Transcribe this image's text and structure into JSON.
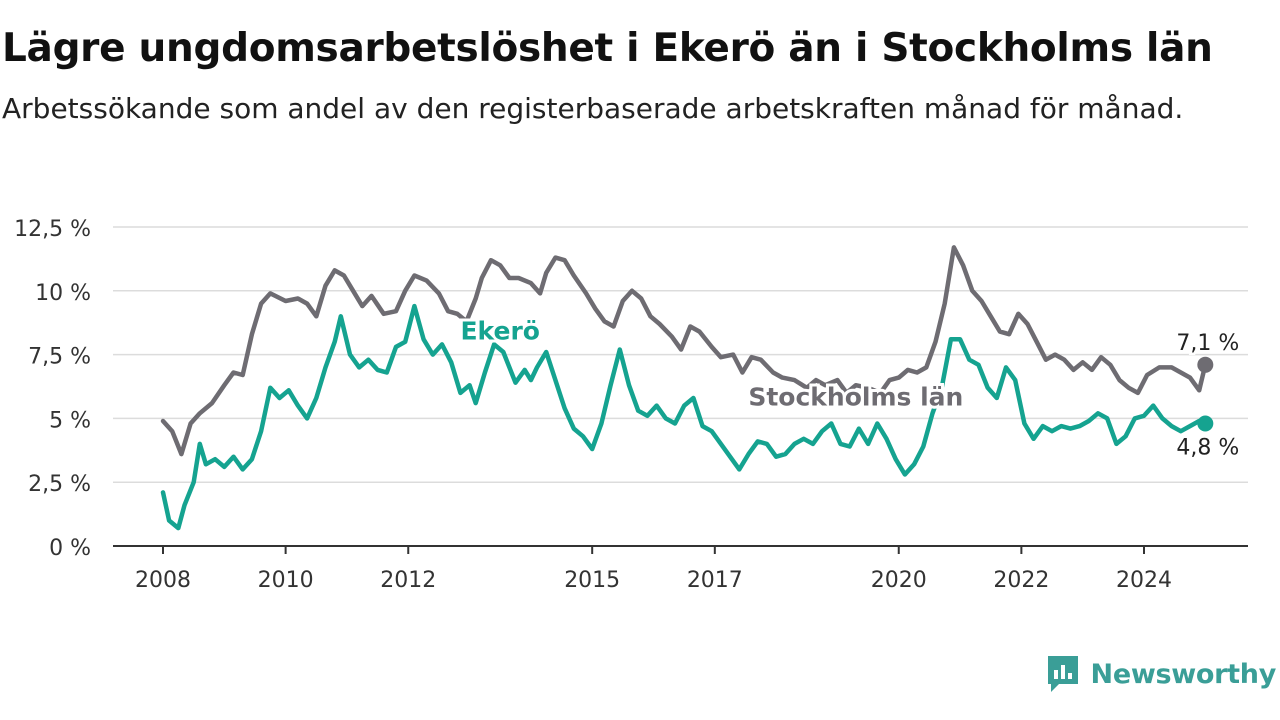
{
  "title": "Lägre ungdomsarbetslöshet i Ekerö än i Stockholms län",
  "subtitle": "Arbetssökande som andel av den registerbaserade arbetskraften månad för månad.",
  "brand": {
    "name": "Newsworthy",
    "color": "#3a9e97",
    "icon": "newsworthy-logo-icon"
  },
  "chart_data": {
    "type": "line",
    "ylim": [
      0,
      12.5
    ],
    "xlim": [
      2008,
      2025.3
    ],
    "yticks": [
      {
        "value": 0,
        "label": "0 %"
      },
      {
        "value": 2.5,
        "label": "2,5 %"
      },
      {
        "value": 5,
        "label": "5 %"
      },
      {
        "value": 7.5,
        "label": "7,5 %"
      },
      {
        "value": 10,
        "label": "10 %"
      },
      {
        "value": 12.5,
        "label": "12,5 %"
      }
    ],
    "xticks": [
      {
        "value": 2008,
        "label": "2008"
      },
      {
        "value": 2010,
        "label": "2010"
      },
      {
        "value": 2012,
        "label": "2012"
      },
      {
        "value": 2015,
        "label": "2015"
      },
      {
        "value": 2017,
        "label": "2017"
      },
      {
        "value": 2020,
        "label": "2020"
      },
      {
        "value": 2022,
        "label": "2022"
      },
      {
        "value": 2024,
        "label": "2024"
      }
    ],
    "grid": true,
    "legend": "none",
    "series": [
      {
        "name": "Stockholms län",
        "color": "#6e6c72",
        "end_label": "7,1 %",
        "points": [
          [
            2008.0,
            4.9
          ],
          [
            2008.15,
            4.5
          ],
          [
            2008.3,
            3.6
          ],
          [
            2008.45,
            4.8
          ],
          [
            2008.6,
            5.2
          ],
          [
            2008.8,
            5.6
          ],
          [
            2009.0,
            6.3
          ],
          [
            2009.15,
            6.8
          ],
          [
            2009.3,
            6.7
          ],
          [
            2009.45,
            8.3
          ],
          [
            2009.6,
            9.5
          ],
          [
            2009.75,
            9.9
          ],
          [
            2010.0,
            9.6
          ],
          [
            2010.2,
            9.7
          ],
          [
            2010.35,
            9.5
          ],
          [
            2010.5,
            9.0
          ],
          [
            2010.65,
            10.2
          ],
          [
            2010.8,
            10.8
          ],
          [
            2010.95,
            10.6
          ],
          [
            2011.1,
            10.0
          ],
          [
            2011.25,
            9.4
          ],
          [
            2011.4,
            9.8
          ],
          [
            2011.6,
            9.1
          ],
          [
            2011.8,
            9.2
          ],
          [
            2011.95,
            10.0
          ],
          [
            2012.1,
            10.6
          ],
          [
            2012.3,
            10.4
          ],
          [
            2012.5,
            9.9
          ],
          [
            2012.65,
            9.2
          ],
          [
            2012.8,
            9.1
          ],
          [
            2012.95,
            8.8
          ],
          [
            2013.1,
            9.7
          ],
          [
            2013.2,
            10.5
          ],
          [
            2013.35,
            11.2
          ],
          [
            2013.5,
            11.0
          ],
          [
            2013.65,
            10.5
          ],
          [
            2013.8,
            10.5
          ],
          [
            2014.0,
            10.3
          ],
          [
            2014.15,
            9.9
          ],
          [
            2014.25,
            10.7
          ],
          [
            2014.4,
            11.3
          ],
          [
            2014.55,
            11.2
          ],
          [
            2014.7,
            10.6
          ],
          [
            2014.9,
            9.9
          ],
          [
            2015.05,
            9.3
          ],
          [
            2015.2,
            8.8
          ],
          [
            2015.35,
            8.6
          ],
          [
            2015.5,
            9.6
          ],
          [
            2015.65,
            10.0
          ],
          [
            2015.8,
            9.7
          ],
          [
            2015.95,
            9.0
          ],
          [
            2016.1,
            8.7
          ],
          [
            2016.3,
            8.2
          ],
          [
            2016.45,
            7.7
          ],
          [
            2016.6,
            8.6
          ],
          [
            2016.75,
            8.4
          ],
          [
            2016.95,
            7.8
          ],
          [
            2017.1,
            7.4
          ],
          [
            2017.3,
            7.5
          ],
          [
            2017.45,
            6.8
          ],
          [
            2017.6,
            7.4
          ],
          [
            2017.75,
            7.3
          ],
          [
            2017.95,
            6.8
          ],
          [
            2018.1,
            6.6
          ],
          [
            2018.3,
            6.5
          ],
          [
            2018.5,
            6.2
          ],
          [
            2018.65,
            6.5
          ],
          [
            2018.8,
            6.3
          ],
          [
            2019.0,
            6.5
          ],
          [
            2019.15,
            6.0
          ],
          [
            2019.3,
            6.3
          ],
          [
            2019.5,
            6.2
          ],
          [
            2019.7,
            6.0
          ],
          [
            2019.85,
            6.5
          ],
          [
            2020.0,
            6.6
          ],
          [
            2020.15,
            6.9
          ],
          [
            2020.3,
            6.8
          ],
          [
            2020.45,
            7.0
          ],
          [
            2020.6,
            8.0
          ],
          [
            2020.75,
            9.5
          ],
          [
            2020.9,
            11.7
          ],
          [
            2021.05,
            11.0
          ],
          [
            2021.2,
            10.0
          ],
          [
            2021.35,
            9.6
          ],
          [
            2021.5,
            9.0
          ],
          [
            2021.65,
            8.4
          ],
          [
            2021.8,
            8.3
          ],
          [
            2021.95,
            9.1
          ],
          [
            2022.1,
            8.7
          ],
          [
            2022.25,
            8.0
          ],
          [
            2022.4,
            7.3
          ],
          [
            2022.55,
            7.5
          ],
          [
            2022.7,
            7.3
          ],
          [
            2022.85,
            6.9
          ],
          [
            2023.0,
            7.2
          ],
          [
            2023.15,
            6.9
          ],
          [
            2023.3,
            7.4
          ],
          [
            2023.45,
            7.1
          ],
          [
            2023.6,
            6.5
          ],
          [
            2023.75,
            6.2
          ],
          [
            2023.9,
            6.0
          ],
          [
            2024.05,
            6.7
          ],
          [
            2024.25,
            7.0
          ],
          [
            2024.45,
            7.0
          ],
          [
            2024.6,
            6.8
          ],
          [
            2024.75,
            6.6
          ],
          [
            2024.9,
            6.1
          ],
          [
            2025.0,
            7.1
          ]
        ]
      },
      {
        "name": "Ekerö",
        "color": "#15a390",
        "end_label": "4,8 %",
        "points": [
          [
            2008.0,
            2.1
          ],
          [
            2008.1,
            1.0
          ],
          [
            2008.25,
            0.7
          ],
          [
            2008.35,
            1.6
          ],
          [
            2008.5,
            2.5
          ],
          [
            2008.6,
            4.0
          ],
          [
            2008.7,
            3.2
          ],
          [
            2008.85,
            3.4
          ],
          [
            2009.0,
            3.1
          ],
          [
            2009.15,
            3.5
          ],
          [
            2009.3,
            3.0
          ],
          [
            2009.45,
            3.4
          ],
          [
            2009.6,
            4.5
          ],
          [
            2009.75,
            6.2
          ],
          [
            2009.9,
            5.8
          ],
          [
            2010.05,
            6.1
          ],
          [
            2010.2,
            5.5
          ],
          [
            2010.35,
            5.0
          ],
          [
            2010.5,
            5.8
          ],
          [
            2010.65,
            7.0
          ],
          [
            2010.8,
            8.0
          ],
          [
            2010.9,
            9.0
          ],
          [
            2011.05,
            7.5
          ],
          [
            2011.2,
            7.0
          ],
          [
            2011.35,
            7.3
          ],
          [
            2011.5,
            6.9
          ],
          [
            2011.65,
            6.8
          ],
          [
            2011.8,
            7.8
          ],
          [
            2011.95,
            8.0
          ],
          [
            2012.1,
            9.4
          ],
          [
            2012.25,
            8.1
          ],
          [
            2012.4,
            7.5
          ],
          [
            2012.55,
            7.9
          ],
          [
            2012.7,
            7.2
          ],
          [
            2012.85,
            6.0
          ],
          [
            2013.0,
            6.3
          ],
          [
            2013.1,
            5.6
          ],
          [
            2013.25,
            6.8
          ],
          [
            2013.4,
            7.9
          ],
          [
            2013.55,
            7.6
          ],
          [
            2013.75,
            6.4
          ],
          [
            2013.9,
            6.9
          ],
          [
            2014.0,
            6.5
          ],
          [
            2014.1,
            7.0
          ],
          [
            2014.25,
            7.6
          ],
          [
            2014.4,
            6.5
          ],
          [
            2014.55,
            5.4
          ],
          [
            2014.7,
            4.6
          ],
          [
            2014.85,
            4.3
          ],
          [
            2015.0,
            3.8
          ],
          [
            2015.15,
            4.8
          ],
          [
            2015.3,
            6.3
          ],
          [
            2015.45,
            7.7
          ],
          [
            2015.6,
            6.3
          ],
          [
            2015.75,
            5.3
          ],
          [
            2015.9,
            5.1
          ],
          [
            2016.05,
            5.5
          ],
          [
            2016.2,
            5.0
          ],
          [
            2016.35,
            4.8
          ],
          [
            2016.5,
            5.5
          ],
          [
            2016.65,
            5.8
          ],
          [
            2016.8,
            4.7
          ],
          [
            2016.95,
            4.5
          ],
          [
            2017.1,
            4.0
          ],
          [
            2017.25,
            3.5
          ],
          [
            2017.4,
            3.0
          ],
          [
            2017.55,
            3.6
          ],
          [
            2017.7,
            4.1
          ],
          [
            2017.85,
            4.0
          ],
          [
            2018.0,
            3.5
          ],
          [
            2018.15,
            3.6
          ],
          [
            2018.3,
            4.0
          ],
          [
            2018.45,
            4.2
          ],
          [
            2018.6,
            4.0
          ],
          [
            2018.75,
            4.5
          ],
          [
            2018.9,
            4.8
          ],
          [
            2019.05,
            4.0
          ],
          [
            2019.2,
            3.9
          ],
          [
            2019.35,
            4.6
          ],
          [
            2019.5,
            4.0
          ],
          [
            2019.65,
            4.8
          ],
          [
            2019.8,
            4.2
          ],
          [
            2019.95,
            3.4
          ],
          [
            2020.1,
            2.8
          ],
          [
            2020.25,
            3.2
          ],
          [
            2020.4,
            3.9
          ],
          [
            2020.55,
            5.2
          ],
          [
            2020.7,
            6.2
          ],
          [
            2020.85,
            8.1
          ],
          [
            2021.0,
            8.1
          ],
          [
            2021.15,
            7.3
          ],
          [
            2021.3,
            7.1
          ],
          [
            2021.45,
            6.2
          ],
          [
            2021.6,
            5.8
          ],
          [
            2021.75,
            7.0
          ],
          [
            2021.9,
            6.5
          ],
          [
            2022.05,
            4.8
          ],
          [
            2022.2,
            4.2
          ],
          [
            2022.35,
            4.7
          ],
          [
            2022.5,
            4.5
          ],
          [
            2022.65,
            4.7
          ],
          [
            2022.8,
            4.6
          ],
          [
            2022.95,
            4.7
          ],
          [
            2023.1,
            4.9
          ],
          [
            2023.25,
            5.2
          ],
          [
            2023.4,
            5.0
          ],
          [
            2023.55,
            4.0
          ],
          [
            2023.7,
            4.3
          ],
          [
            2023.85,
            5.0
          ],
          [
            2024.0,
            5.1
          ],
          [
            2024.15,
            5.5
          ],
          [
            2024.3,
            5.0
          ],
          [
            2024.45,
            4.7
          ],
          [
            2024.6,
            4.5
          ],
          [
            2024.75,
            4.7
          ],
          [
            2024.9,
            4.9
          ],
          [
            2025.0,
            4.8
          ]
        ]
      }
    ],
    "annotations": [
      {
        "text": "Ekerö",
        "series": "Ekerö",
        "x": 2013.5,
        "y": 8.1
      },
      {
        "text": "Stockholms län",
        "series": "Stockholms län",
        "x": 2019.3,
        "y": 5.5
      }
    ]
  }
}
